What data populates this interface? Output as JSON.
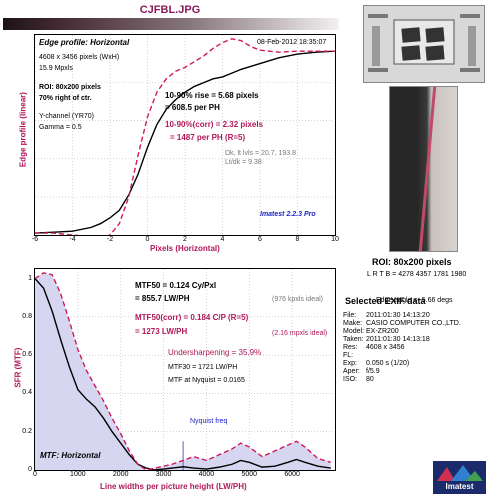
{
  "window_title": "CJFBL.JPG",
  "edge_chart": {
    "title": "Edge profile: Horizontal",
    "timestamp": "08-Feb-2012 18:35:07",
    "info_lines": [
      "4608 x 3456 pixels (WxH)",
      "15.9 Mpxls"
    ],
    "roi_lines": [
      "ROI: 80x200 pixels",
      "70% right of ctr."
    ],
    "channel_lines": [
      "Y-channel  (YR70)",
      "Gamma = 0.5"
    ],
    "rise_text": "10-90% rise = 5.68 pixels",
    "rise_ph": "= 608.5 per PH",
    "corr_text": "10-90%(corr) = 2.32 pixels",
    "corr_ph": "= 1487 per PH  (R=5)",
    "lvls_text": "Dk, lt lvls = 20.7, 193.8",
    "ltdk_text": "Lt/dk = 9.38",
    "brand": "Imatest 2.2.3 Pro",
    "xlabel": "Pixels (Horizontal)",
    "ylabel": "Edge profile (linear)"
  },
  "mtf_chart": {
    "mtf50": "MTF50 = 0.124 Cy/Pxl",
    "mtf50_lw": "= 855.7 LW/PH",
    "mtf50_ideal": "(976 kpxls ideal)",
    "mtf50c": "MTF50(corr) = 0.184 C/P  (R=5)",
    "mtf50c_lw": "= 1273 LW/PH",
    "mtf50c_ideal": "(2.16 mpxls ideal)",
    "undersharp": "Undersharpening = 35.9%",
    "mtf30": "MTF30 = 1721 LW/PH",
    "nyq_text": "MTF at Nyquist = 0.0165",
    "nyq_label": "Nyquist freq",
    "label": "MTF: Horizontal",
    "xlabel": "Line widths per picture height (LW/PH)",
    "ylabel": "SFR (MTF)"
  },
  "roi": {
    "title": "ROI: 80x200 pixels",
    "coords": "L R T B = 4278 4357  1781 1980",
    "edge_angle": "Edge angle = -5.66 degs"
  },
  "exif": {
    "title": "Selected EXIF data",
    "rows": [
      [
        "File:",
        "2011:01:30 14:13:20"
      ],
      [
        "Make:",
        "CASIO COMPUTER CO.,LTD."
      ],
      [
        "Model:",
        "EX-ZR200"
      ],
      [
        "Taken:",
        "2011:01:30 14:13:18"
      ],
      [
        "Res:",
        "4608 x 3456"
      ],
      [
        "FL:",
        ""
      ],
      [
        "Exp:",
        "0.050 s  (1/20)"
      ],
      [
        "Aper:",
        "f/5.9"
      ],
      [
        "ISO:",
        "80"
      ]
    ]
  },
  "logo_text": "Imatest",
  "colors": {
    "measured": "#000000",
    "corrected": "#d0185a",
    "nyquist": "#5a5ad8",
    "accent": "#8a1a5a"
  },
  "chart_data": [
    {
      "type": "line",
      "title": "Edge profile: Horizontal",
      "xlabel": "Pixels (Horizontal)",
      "ylabel": "Edge profile (linear)",
      "xlim": [
        -6,
        10
      ],
      "ylim": [
        0,
        1.05
      ],
      "xticks": [
        "-6",
        "-4",
        "-2",
        "0",
        "2",
        "4",
        "6",
        "8",
        "10"
      ],
      "grid": true,
      "series": [
        {
          "x": [
            -6,
            -5,
            -4,
            -3,
            -2.5,
            -2,
            -1.5,
            -1,
            -0.5,
            0,
            0.5,
            1,
            1.5,
            2,
            2.5,
            3,
            3.5,
            4,
            4.5,
            5,
            6,
            7,
            8,
            9,
            10
          ],
          "y": [
            0.01,
            0.015,
            0.02,
            0.04,
            0.06,
            0.09,
            0.13,
            0.21,
            0.32,
            0.46,
            0.58,
            0.66,
            0.71,
            0.75,
            0.78,
            0.8,
            0.82,
            0.83,
            0.85,
            0.87,
            0.9,
            0.93,
            0.95,
            0.96,
            0.965
          ]
        },
        {
          "x": [
            -6,
            -5,
            -4,
            -3,
            -2.5,
            -2,
            -1.5,
            -1,
            -0.5,
            0,
            0.5,
            1,
            1.5,
            2,
            2.5,
            3,
            3.5,
            4,
            4.5,
            5,
            5.5,
            6,
            7,
            8,
            9,
            10
          ],
          "y": [
            0.01,
            0.01,
            0.0,
            -0.01,
            -0.02,
            0.0,
            0.06,
            0.2,
            0.42,
            0.62,
            0.75,
            0.82,
            0.86,
            0.88,
            0.91,
            0.94,
            0.98,
            1.01,
            1.03,
            1.02,
            0.99,
            0.97,
            0.96,
            0.965,
            0.965,
            0.965
          ]
        }
      ]
    },
    {
      "type": "line",
      "title": "MTF: Horizontal",
      "xlabel": "Line widths per picture height (LW/PH)",
      "ylabel": "SFR (MTF)",
      "xlim": [
        0,
        7000
      ],
      "ylim": [
        0,
        1.05
      ],
      "xticks": [
        "0",
        "1000",
        "2000",
        "3000",
        "4000",
        "5000",
        "6000"
      ],
      "yticks": [
        "0",
        "0.2",
        "0.4",
        "0.6",
        "0.8",
        "1"
      ],
      "grid": true,
      "nyquist_x": 3456,
      "series": [
        {
          "x": [
            0,
            200,
            400,
            600,
            800,
            1000,
            1200,
            1400,
            1600,
            1800,
            2000,
            2200,
            2400,
            2600,
            2800,
            3000,
            3200,
            3456,
            3700,
            4000,
            4300,
            4600,
            4800,
            5000,
            5300,
            5600,
            5900,
            6100,
            6300,
            6600,
            6900
          ],
          "y": [
            1.0,
            0.95,
            0.83,
            0.68,
            0.54,
            0.42,
            0.37,
            0.33,
            0.27,
            0.2,
            0.14,
            0.08,
            0.03,
            0.01,
            0.0,
            0.005,
            0.01,
            0.017,
            0.01,
            0.005,
            0.015,
            0.03,
            0.05,
            0.04,
            0.015,
            0.02,
            0.04,
            0.055,
            0.04,
            0.02,
            0.01
          ]
        },
        {
          "x": [
            0,
            200,
            400,
            600,
            800,
            1000,
            1200,
            1400,
            1600,
            1800,
            2000,
            2200,
            2400,
            2600,
            2800,
            3000,
            3200,
            3456,
            3700,
            4000,
            4300,
            4600,
            4800,
            5000,
            5300,
            5600,
            5900,
            6100,
            6300,
            6600,
            6900
          ],
          "y": [
            1.0,
            1.03,
            1.02,
            0.92,
            0.78,
            0.63,
            0.52,
            0.44,
            0.36,
            0.27,
            0.19,
            0.1,
            0.03,
            0.0,
            0.01,
            0.02,
            0.03,
            0.05,
            0.07,
            0.05,
            0.08,
            0.11,
            0.14,
            0.12,
            0.07,
            0.1,
            0.13,
            0.15,
            0.12,
            0.06,
            0.04
          ]
        }
      ]
    }
  ]
}
